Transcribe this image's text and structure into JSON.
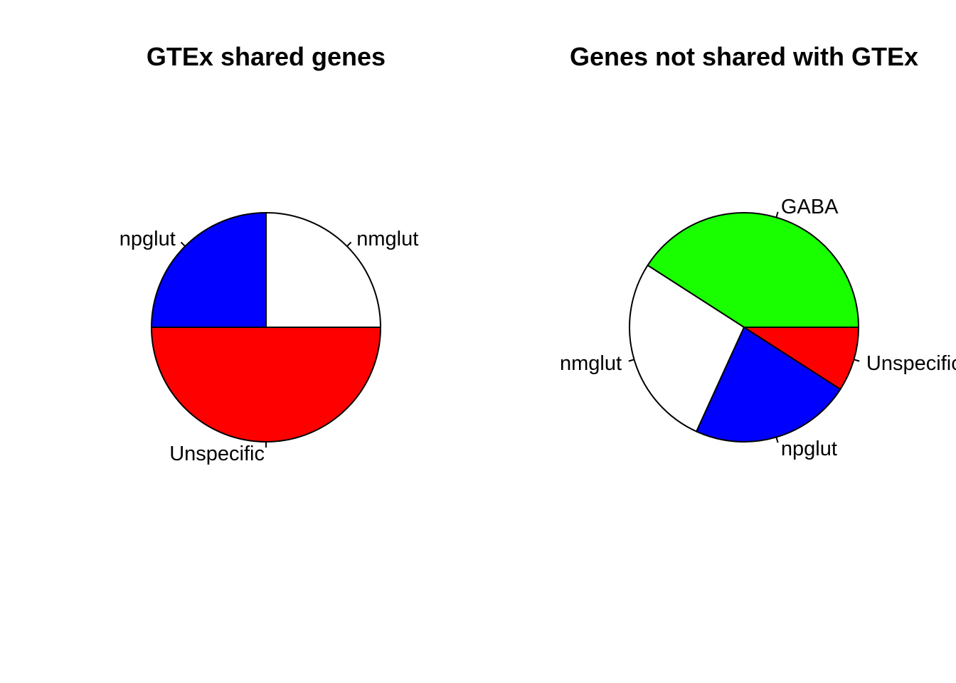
{
  "chart_data": [
    {
      "type": "pie",
      "title": "GTEx shared genes",
      "direction": "counterclockwise",
      "start_angle_deg": 0,
      "slices": [
        {
          "label": "nmglut",
          "value": 1,
          "color": "#ffffff"
        },
        {
          "label": "npglut",
          "value": 1,
          "color": "#0000ff"
        },
        {
          "label": "Unspecific",
          "value": 2,
          "color": "#ff0000"
        }
      ]
    },
    {
      "type": "pie",
      "title": "Genes not shared with GTEx",
      "direction": "counterclockwise",
      "start_angle_deg": 0,
      "slices": [
        {
          "label": "GABA",
          "value": 9,
          "color": "#1aff00"
        },
        {
          "label": "nmglut",
          "value": 6,
          "color": "#ffffff"
        },
        {
          "label": "npglut",
          "value": 5,
          "color": "#0000ff"
        },
        {
          "label": "Unspecific",
          "value": 2,
          "color": "#ff0000"
        }
      ]
    }
  ]
}
